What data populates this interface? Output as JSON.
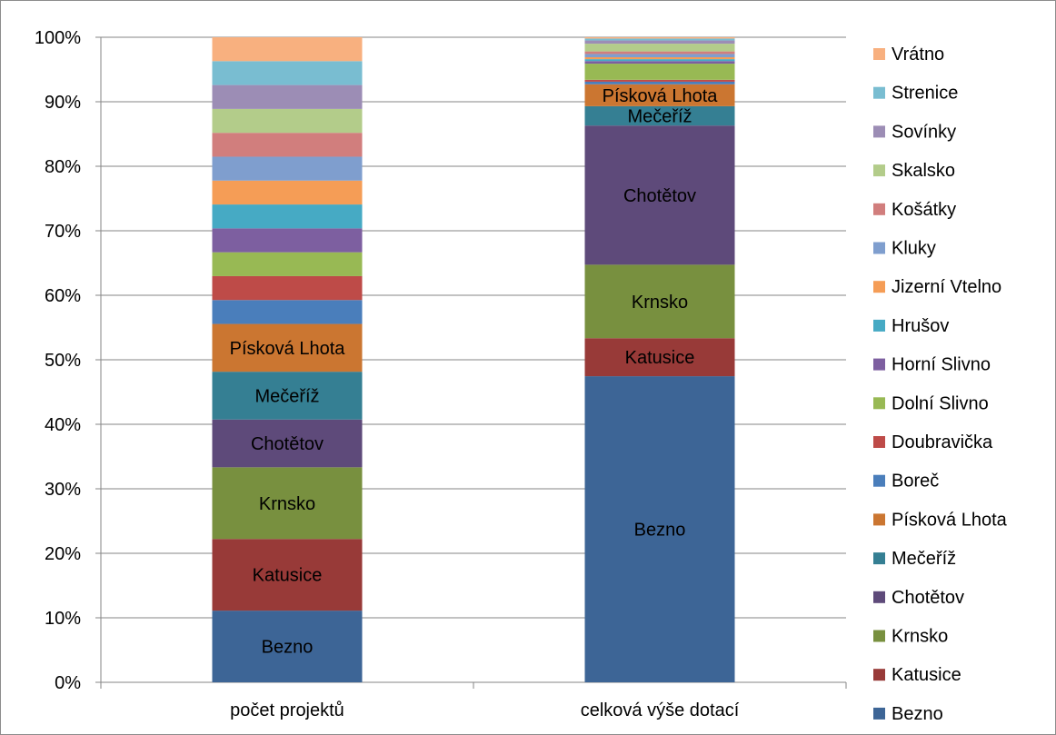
{
  "chart_data": {
    "type": "bar",
    "stacked": "percent",
    "categories": [
      "počet projektů",
      "celková výše dotací"
    ],
    "y_ticks": [
      "0%",
      "10%",
      "20%",
      "30%",
      "40%",
      "50%",
      "60%",
      "70%",
      "80%",
      "90%",
      "100%"
    ],
    "ylim": [
      0,
      100
    ],
    "grid": true,
    "legend_position": "right",
    "series": [
      {
        "name": "Bezno",
        "color": "#3D6596",
        "values": [
          11.1,
          47.5
        ],
        "labels": [
          "Bezno",
          "Bezno"
        ]
      },
      {
        "name": "Katusice",
        "color": "#983A38",
        "values": [
          11.1,
          5.9
        ],
        "labels": [
          "Katusice",
          "Katusice"
        ]
      },
      {
        "name": "Krnsko",
        "color": "#78903F",
        "values": [
          11.1,
          11.4
        ],
        "labels": [
          "Krnsko",
          "Krnsko"
        ]
      },
      {
        "name": "Chotětov",
        "color": "#5E4A7A",
        "values": [
          7.4,
          21.6
        ],
        "labels": [
          "Chotětov",
          "Chotětov"
        ]
      },
      {
        "name": "Mečeříž",
        "color": "#357F93",
        "values": [
          7.4,
          3.0
        ],
        "labels": [
          "Mečeříž",
          "Mečeříž"
        ]
      },
      {
        "name": "Písková Lhota",
        "color": "#CB7631",
        "values": [
          7.4,
          3.4
        ],
        "labels": [
          "Písková Lhota",
          "Písková Lhota"
        ]
      },
      {
        "name": "Boreč",
        "color": "#4A7EBB",
        "values": [
          3.7,
          0.4
        ],
        "labels": [
          "",
          ""
        ]
      },
      {
        "name": "Doubravička",
        "color": "#BE4B48",
        "values": [
          3.7,
          0.3
        ],
        "labels": [
          "",
          ""
        ]
      },
      {
        "name": "Dolní Slivno",
        "color": "#98B954",
        "values": [
          3.7,
          2.5
        ],
        "labels": [
          "",
          ""
        ]
      },
      {
        "name": "Horní Slivno",
        "color": "#7D5FA0",
        "values": [
          3.7,
          0.4
        ],
        "labels": [
          "",
          ""
        ]
      },
      {
        "name": "Hrušov",
        "color": "#46AAC4",
        "values": [
          3.7,
          0.3
        ],
        "labels": [
          "",
          ""
        ]
      },
      {
        "name": "Jizerní Vtelno",
        "color": "#F59D56",
        "values": [
          3.7,
          0.3
        ],
        "labels": [
          "",
          ""
        ]
      },
      {
        "name": "Kluky",
        "color": "#7F9ECE",
        "values": [
          3.7,
          0.5
        ],
        "labels": [
          "",
          ""
        ]
      },
      {
        "name": "Košátky",
        "color": "#D17E7D",
        "values": [
          3.7,
          0.4
        ],
        "labels": [
          "",
          ""
        ]
      },
      {
        "name": "Skalsko",
        "color": "#B3CC8A",
        "values": [
          3.7,
          1.2
        ],
        "labels": [
          "",
          ""
        ]
      },
      {
        "name": "Sovínky",
        "color": "#9C8DB5",
        "values": [
          3.7,
          0.5
        ],
        "labels": [
          "",
          ""
        ]
      },
      {
        "name": "Strenice",
        "color": "#79BDD1",
        "values": [
          3.7,
          0.3
        ],
        "labels": [
          "",
          ""
        ]
      },
      {
        "name": "Vrátno",
        "color": "#F8B07F",
        "values": [
          3.7,
          0.2
        ],
        "labels": [
          "",
          ""
        ]
      }
    ]
  }
}
